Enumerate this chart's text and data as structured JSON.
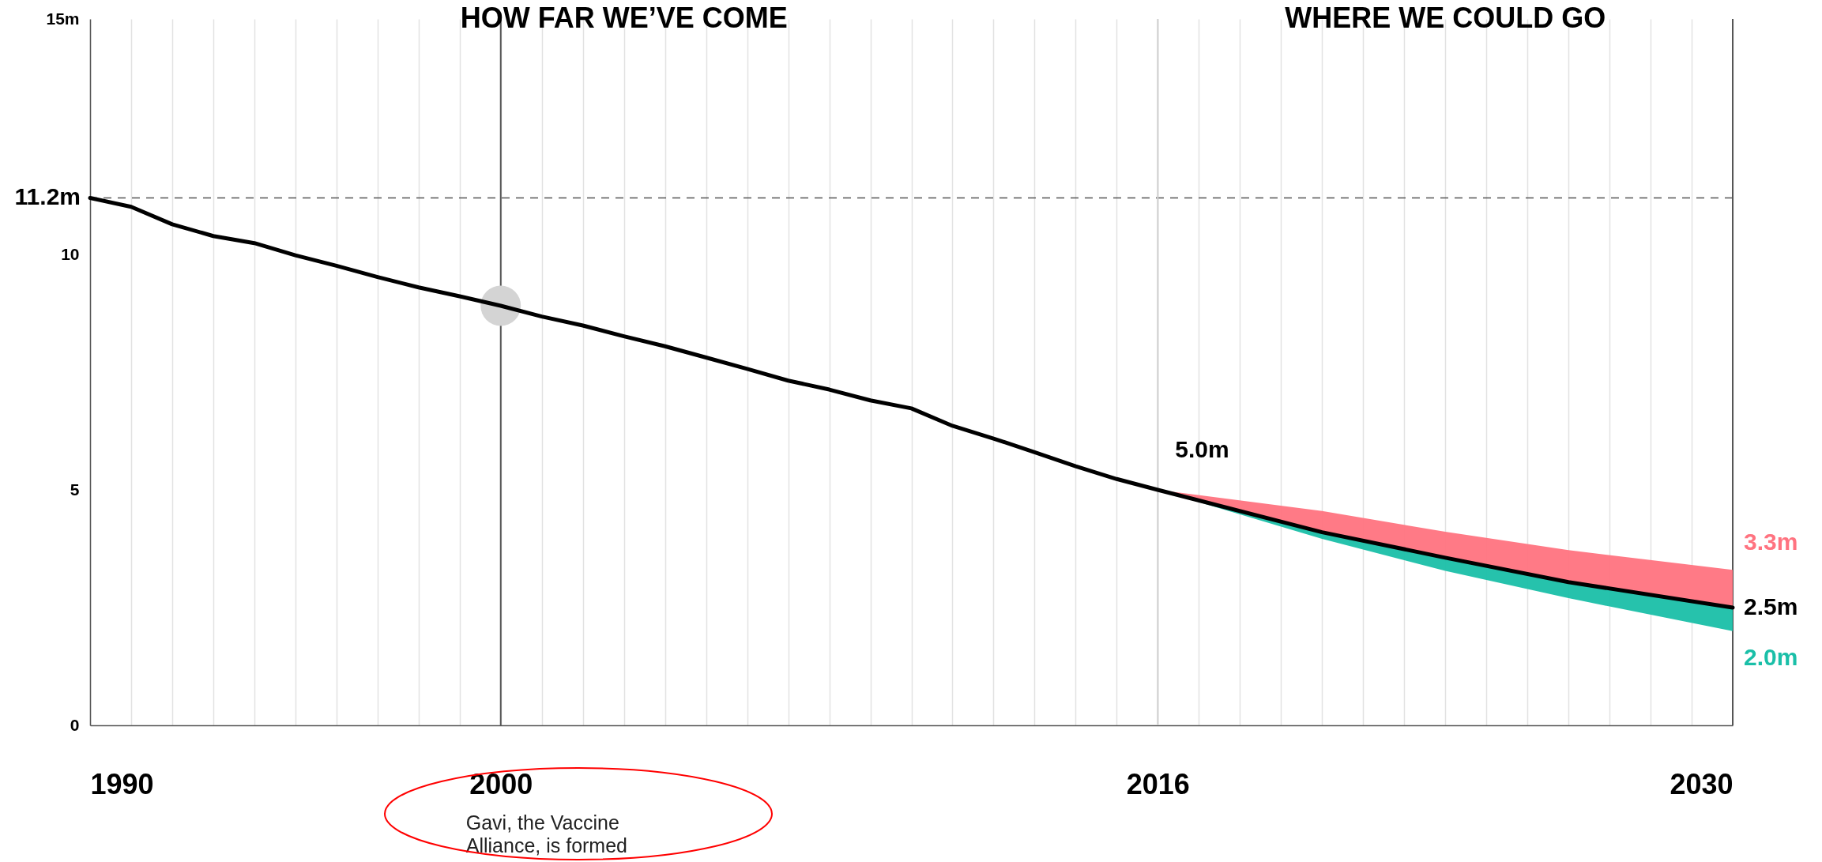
{
  "chart_data": {
    "type": "line",
    "annotations": [
      "HOW FAR WE’VE COME",
      "WHERE WE COULD GO",
      "Gavi, the Vaccine Alliance, is formed"
    ],
    "xlim": [
      1990,
      2030
    ],
    "xticks": [
      1990,
      {
        "value": 1991,
        "label": null
      },
      {
        "value": 1992,
        "label": null
      },
      {
        "value": 1993,
        "label": null
      },
      {
        "value": 1994,
        "label": null
      },
      {
        "value": 1995,
        "label": null
      },
      {
        "value": 1996,
        "label": null
      },
      {
        "value": 1997,
        "label": null
      },
      {
        "value": 1998,
        "label": null
      },
      {
        "value": 1999,
        "label": null
      },
      2000,
      {
        "value": 2001,
        "label": null
      },
      {
        "value": 2002,
        "label": null
      },
      {
        "value": 2003,
        "label": null
      },
      {
        "value": 2004,
        "label": null
      },
      {
        "value": 2005,
        "label": null
      },
      {
        "value": 2006,
        "label": null
      },
      {
        "value": 2007,
        "label": null
      },
      {
        "value": 2008,
        "label": null
      },
      {
        "value": 2009,
        "label": null
      },
      {
        "value": 2010,
        "label": null
      },
      {
        "value": 2011,
        "label": null
      },
      {
        "value": 2012,
        "label": null
      },
      {
        "value": 2013,
        "label": null
      },
      {
        "value": 2014,
        "label": null
      },
      {
        "value": 2015,
        "label": null
      },
      2016,
      {
        "value": 2017,
        "label": null
      },
      {
        "value": 2018,
        "label": null
      },
      {
        "value": 2019,
        "label": null
      },
      {
        "value": 2020,
        "label": null
      },
      {
        "value": 2021,
        "label": null
      },
      {
        "value": 2022,
        "label": null
      },
      {
        "value": 2023,
        "label": null
      },
      {
        "value": 2024,
        "label": null
      },
      {
        "value": 2025,
        "label": null
      },
      {
        "value": 2026,
        "label": null
      },
      {
        "value": 2027,
        "label": null
      },
      {
        "value": 2028,
        "label": null
      },
      {
        "value": 2029,
        "label": null
      },
      2030
    ],
    "ylim": [
      0,
      15
    ],
    "yticks": [
      0,
      5,
      10,
      {
        "value": 15,
        "label": "15m"
      }
    ],
    "grid": "x",
    "line_style": "solid",
    "ref_lines": [
      {
        "axis": "y",
        "value": 11.2,
        "line_style": "dashed",
        "color": "#555555"
      },
      {
        "axis": "x",
        "value": 2016,
        "color": "#cfcfcf"
      },
      {
        "axis": "x",
        "value": 2030,
        "color": "#555555"
      },
      {
        "axis": "x",
        "value": 2000,
        "color": "#555555"
      }
    ],
    "series": [
      {
        "type": "area",
        "color": "#ff7380",
        "x": [
          2016,
          2020,
          2023,
          2026,
          2030
        ],
        "values": [
          5.0,
          4.55,
          4.11,
          3.72,
          3.3
        ],
        "value_labels": [
          null,
          null,
          null,
          null,
          "3.3m"
        ]
      },
      {
        "type": "area",
        "color": "#1abfa8",
        "x": [
          2016,
          2020,
          2023,
          2026,
          2030
        ],
        "values": [
          5.0,
          3.96,
          3.28,
          2.7,
          2.0
        ],
        "value_labels": [
          null,
          null,
          null,
          null,
          "2.0m"
        ]
      },
      {
        "type": "line",
        "color": "#000000",
        "x": [
          1990,
          1991,
          1992,
          1993,
          1994,
          1995,
          1996,
          1997,
          1998,
          1999,
          2000,
          2001,
          2002,
          2003,
          2004,
          2005,
          2006,
          2007,
          2008,
          2009,
          2010,
          2011,
          2012,
          2013,
          2014,
          2015,
          2016,
          2020,
          2023,
          2026,
          2030
        ],
        "values": [
          11.2,
          11.01,
          10.64,
          10.39,
          10.24,
          9.98,
          9.76,
          9.52,
          9.3,
          9.11,
          8.91,
          8.68,
          8.49,
          8.26,
          8.05,
          7.81,
          7.57,
          7.32,
          7.13,
          6.9,
          6.73,
          6.36,
          6.09,
          5.8,
          5.5,
          5.23,
          5.0,
          4.1,
          3.56,
          3.04,
          2.5
        ],
        "value_labels": [
          "11.2m",
          null,
          null,
          null,
          null,
          null,
          null,
          null,
          null,
          null,
          null,
          null,
          null,
          null,
          null,
          null,
          null,
          null,
          null,
          null,
          null,
          null,
          null,
          null,
          null,
          null,
          "5.0m",
          null,
          null,
          null,
          "2.5m"
        ]
      },
      {
        "type": "scatter",
        "color": "#d4d4d4",
        "x": [
          2000
        ],
        "values": [
          8.91
        ]
      }
    ]
  }
}
